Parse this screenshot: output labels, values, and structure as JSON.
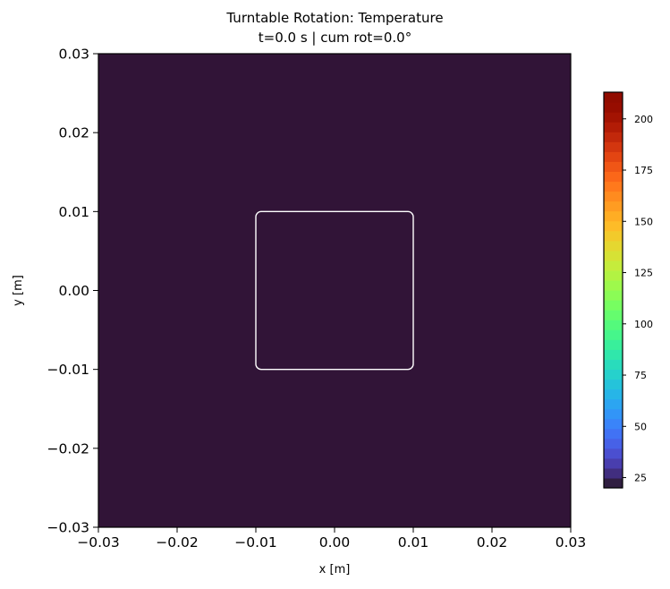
{
  "chart_data": {
    "type": "heatmap",
    "title": "Turntable Rotation: Temperature",
    "subtitle": "t=0.0 s  |  cum rot=0.0°",
    "xlabel": "x [m]",
    "ylabel": "y [m]",
    "xlim": [
      -0.03,
      0.03
    ],
    "ylim": [
      -0.03,
      0.03
    ],
    "xticks": [
      "−0.03",
      "−0.02",
      "−0.01",
      "0.00",
      "0.01",
      "0.02",
      "0.03"
    ],
    "yticks": [
      "0.03",
      "0.02",
      "0.01",
      "0.00",
      "−0.01",
      "−0.02",
      "−0.03"
    ],
    "field_value": 25,
    "field_color": "#311437",
    "outline": {
      "shape": "rounded-square",
      "x_range": [
        -0.01,
        0.01
      ],
      "y_range": [
        -0.01,
        0.01
      ],
      "color": "#ffffff"
    },
    "colorbar": {
      "colormap": "turbo",
      "range": [
        20,
        213
      ],
      "ticks": [
        "25",
        "50",
        "75",
        "100",
        "125",
        "150",
        "175",
        "200"
      ]
    }
  }
}
